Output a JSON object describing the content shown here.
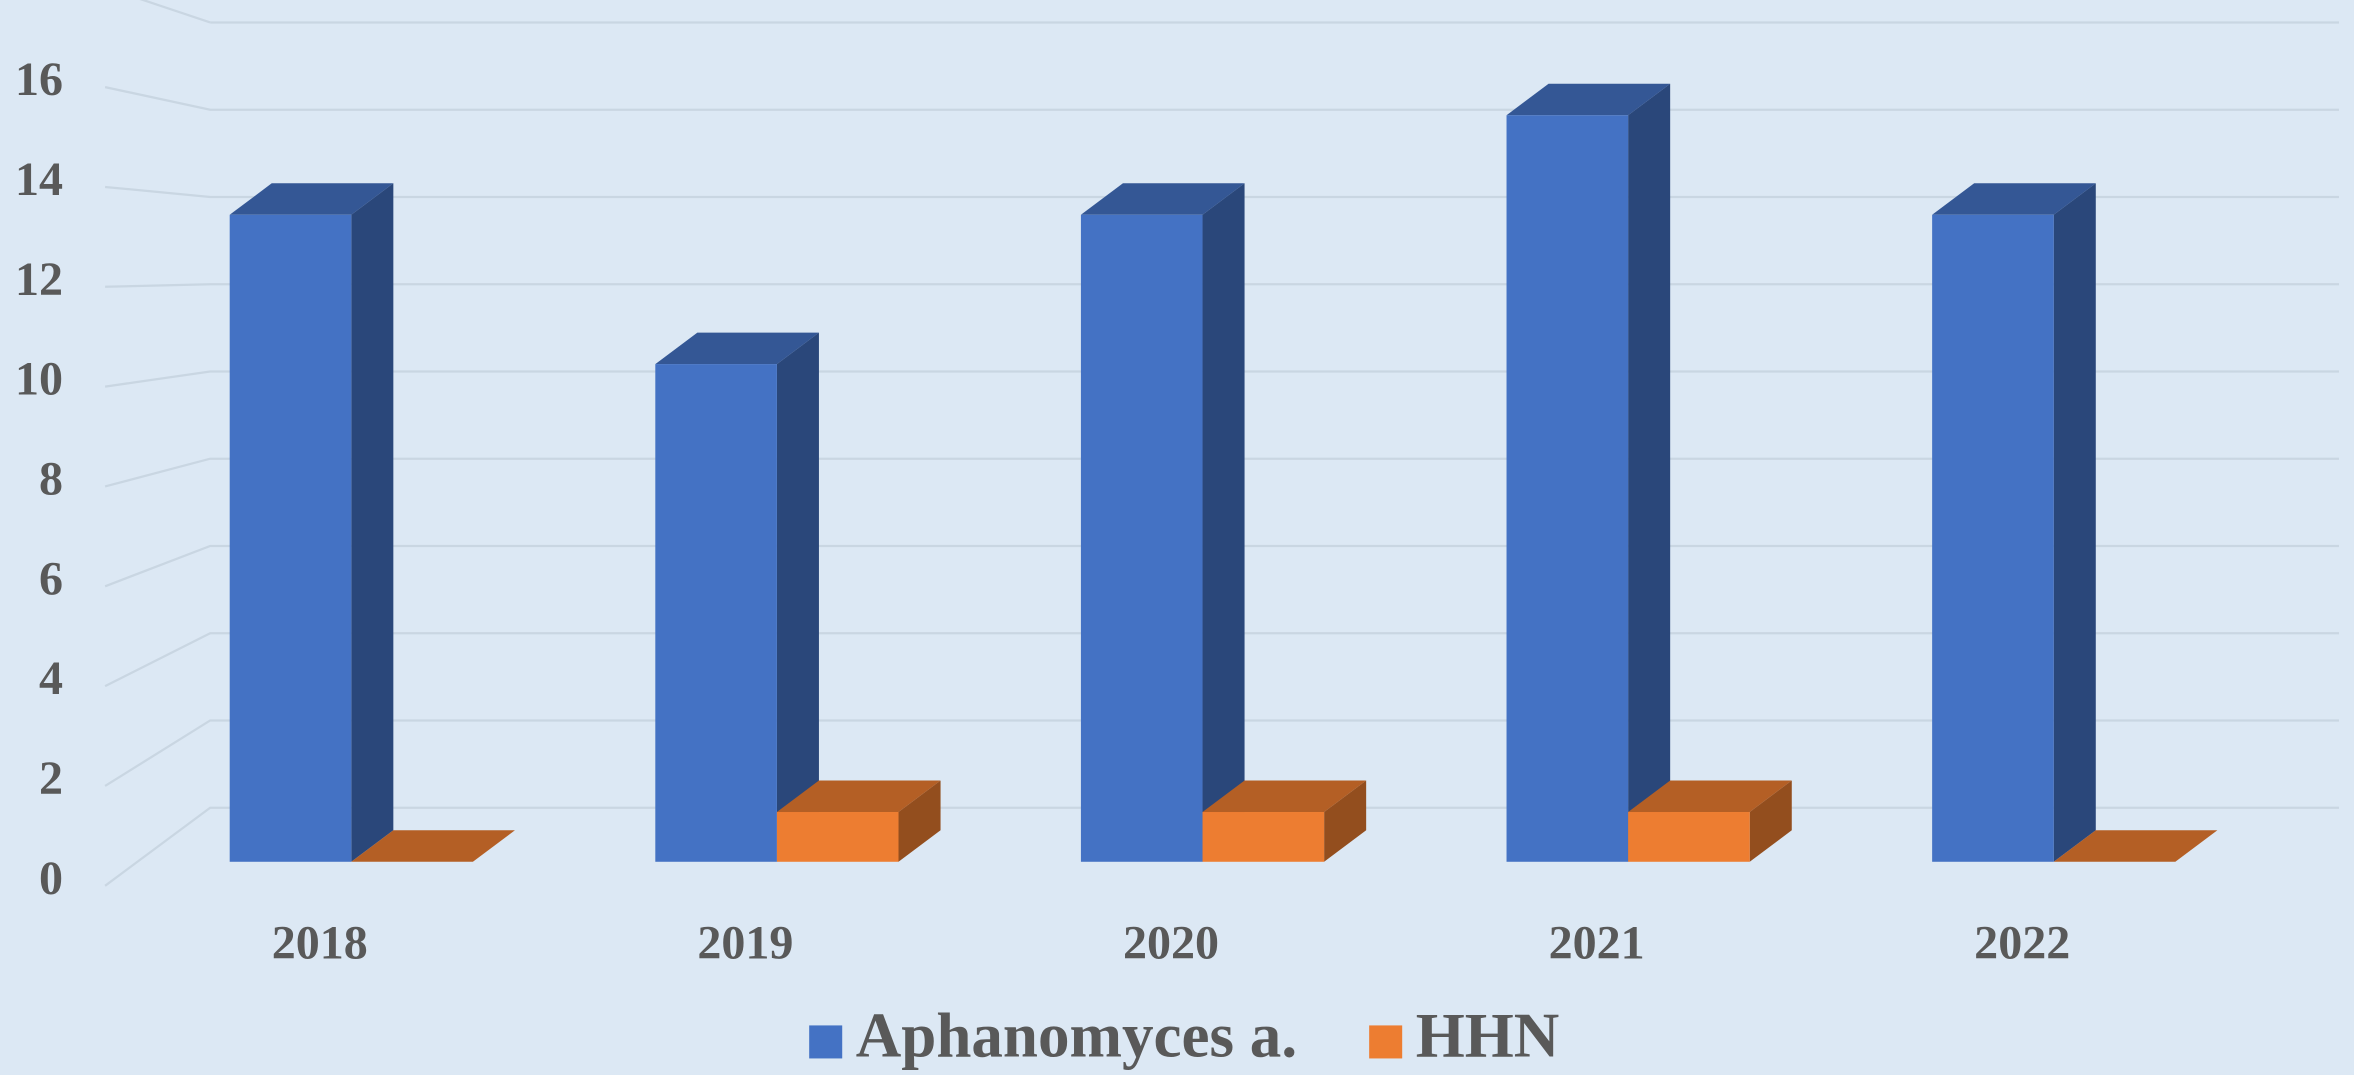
{
  "chart_data": {
    "type": "bar3d",
    "categories": [
      "2018",
      "2019",
      "2020",
      "2021",
      "2022"
    ],
    "series": [
      {
        "name": "Aphanomyces a.",
        "color": "#4472c4",
        "values": [
          13,
          10,
          13,
          15,
          13
        ]
      },
      {
        "name": "HHN",
        "color": "#ed7d31",
        "values": [
          0,
          1,
          1,
          1,
          0
        ]
      }
    ],
    "ylim": [
      0,
      18
    ],
    "yticks": [
      0,
      2,
      4,
      6,
      8,
      10,
      12,
      14,
      16
    ],
    "grid": true,
    "legend": "bottom"
  }
}
